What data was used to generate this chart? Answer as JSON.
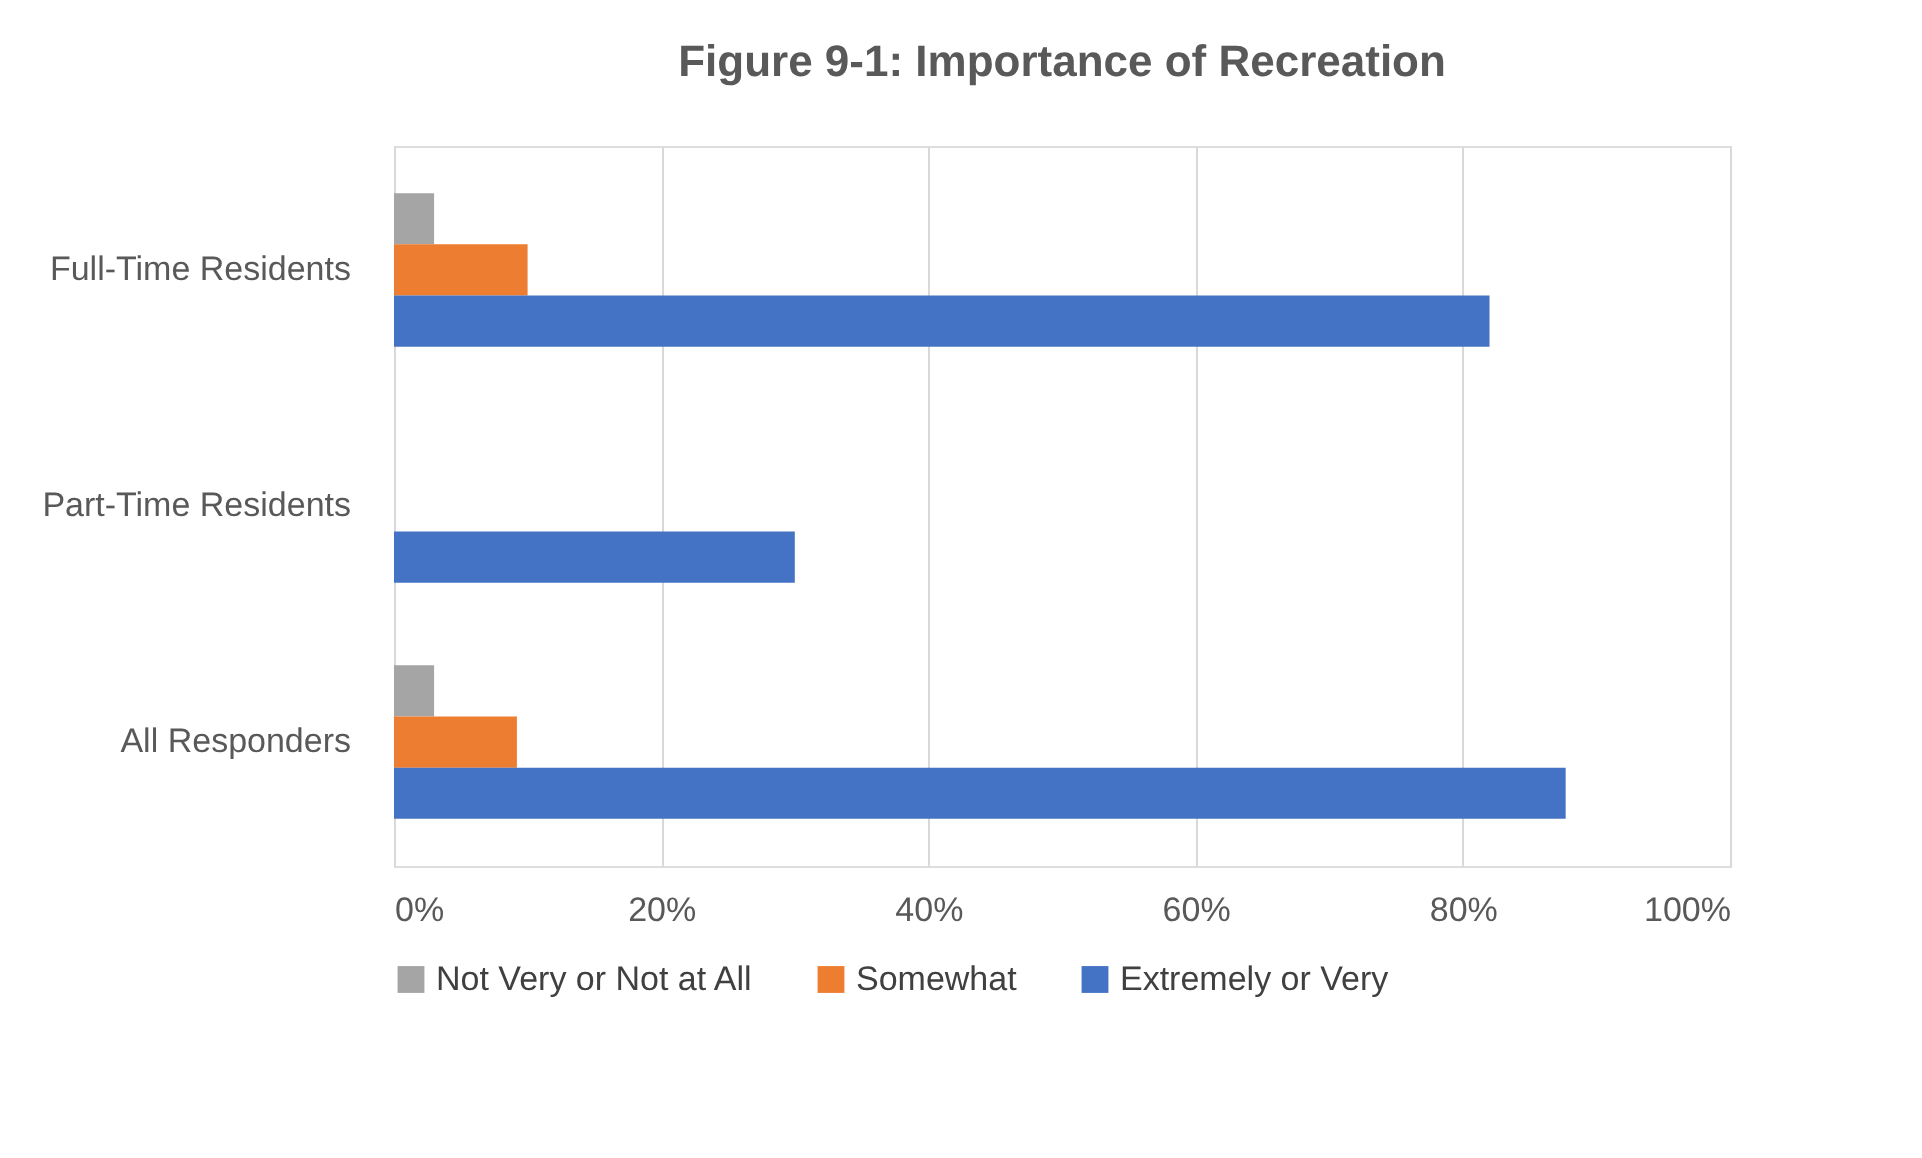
{
  "chart_data": {
    "type": "bar",
    "orientation": "horizontal",
    "title": "Figure 9-1: Importance of Recreation",
    "categories": [
      "Full-Time Residents",
      "Part-Time Residents",
      "All Responders"
    ],
    "series": [
      {
        "name": "Not Very or Not at All",
        "color": "#a5a5a5",
        "values": [
          3,
          null,
          3
        ]
      },
      {
        "name": "Somewhat",
        "color": "#ed7d31",
        "values": [
          10,
          null,
          9.2
        ]
      },
      {
        "name": "Extremely or Very",
        "color": "#4472c4",
        "values": [
          82,
          30,
          87.7
        ]
      }
    ],
    "xlim": [
      0,
      100
    ],
    "xticks": [
      {
        "value": 0,
        "label": "0%"
      },
      {
        "value": 20,
        "label": "20%"
      },
      {
        "value": 40,
        "label": "40%"
      },
      {
        "value": 60,
        "label": "60%"
      },
      {
        "value": 80,
        "label": "80%"
      },
      {
        "value": 100,
        "label": "100%"
      }
    ],
    "grid": "x",
    "legend": "bottom"
  }
}
